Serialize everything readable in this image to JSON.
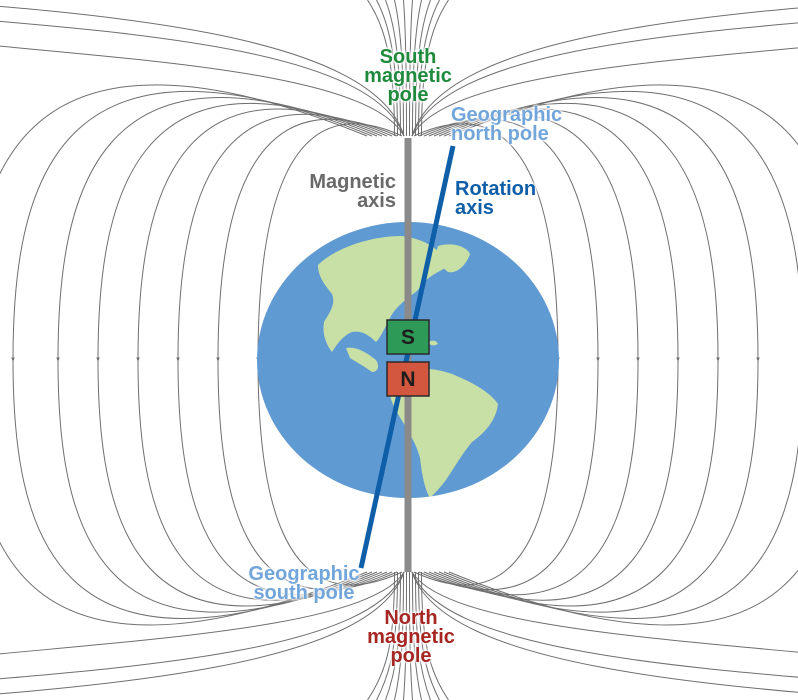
{
  "colors": {
    "field_line": "#6f6f6f",
    "magnetic_axis": "#8a8a8a",
    "rotation_axis": "#0e5ea8",
    "ocean": "#5f9ad2",
    "land": "#c8dfa6",
    "magnet_south": "#2e9a57",
    "magnet_north": "#d3573f",
    "south_label": "#1f8a3c",
    "north_label": "#a52623",
    "geographic_label": "#72a6db",
    "rotation_label": "#0e5ea8",
    "magnetic_axis_label": "#6a6a6a"
  },
  "labels": {
    "south_magnetic_pole": "South\nmagnetic\npole",
    "north_magnetic_pole": "North\nmagnetic\npole",
    "geographic_north_pole": "Geographic\nnorth pole",
    "geographic_south_pole": "Geographic\nsouth pole",
    "magnetic_axis": "Magnetic\naxis",
    "rotation_axis": "Rotation\naxis"
  },
  "magnet": {
    "south_letter": "S",
    "north_letter": "N"
  }
}
